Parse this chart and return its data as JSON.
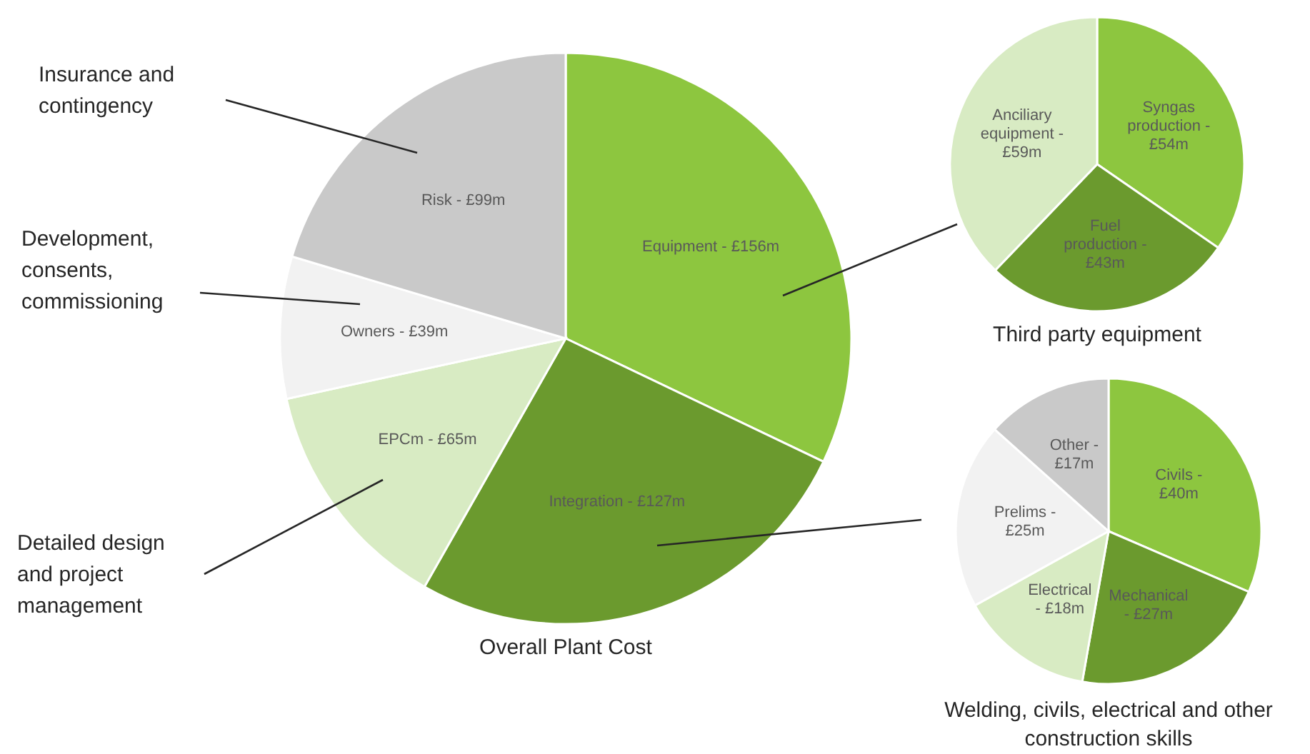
{
  "chart_data": [
    {
      "type": "pie",
      "title": "Overall Plant Cost",
      "categories": [
        "Equipment -",
        "Integration -",
        "EPCm -",
        "Owners -",
        "Risk -"
      ],
      "values": [
        156,
        127,
        65,
        39,
        99
      ],
      "value_labels": [
        "£156m",
        "£127m",
        "£65m",
        "£39m",
        "£99m"
      ],
      "colors": [
        "#8dc63f",
        "#6b9a2e",
        "#d8ebc3",
        "#f2f2f2",
        "#c9c9c9"
      ],
      "annotations": [
        "Insurance and contingency",
        "Development, consents, commissioning",
        "Detailed design and project management"
      ]
    },
    {
      "type": "pie",
      "title": "Third party equipment",
      "categories": [
        "Syngas production -",
        "Fuel production -",
        "Anciliary equipment -"
      ],
      "values": [
        54,
        43,
        59
      ],
      "value_labels": [
        "£54m",
        "£43m",
        "£59m"
      ],
      "colors": [
        "#8dc63f",
        "#6b9a2e",
        "#d8ebc3"
      ]
    },
    {
      "type": "pie",
      "title": "Welding, civils, electrical and other construction skills",
      "categories": [
        "Civils -",
        "Mechanical -",
        "Electrical -",
        "Prelims -",
        "Other -"
      ],
      "values": [
        40,
        27,
        18,
        25,
        17
      ],
      "value_labels": [
        "£40m",
        "£27m",
        "£18m",
        "£25m",
        "£17m"
      ],
      "colors": [
        "#8dc63f",
        "#6b9a2e",
        "#d8ebc3",
        "#f2f2f2",
        "#c9c9c9"
      ]
    }
  ]
}
